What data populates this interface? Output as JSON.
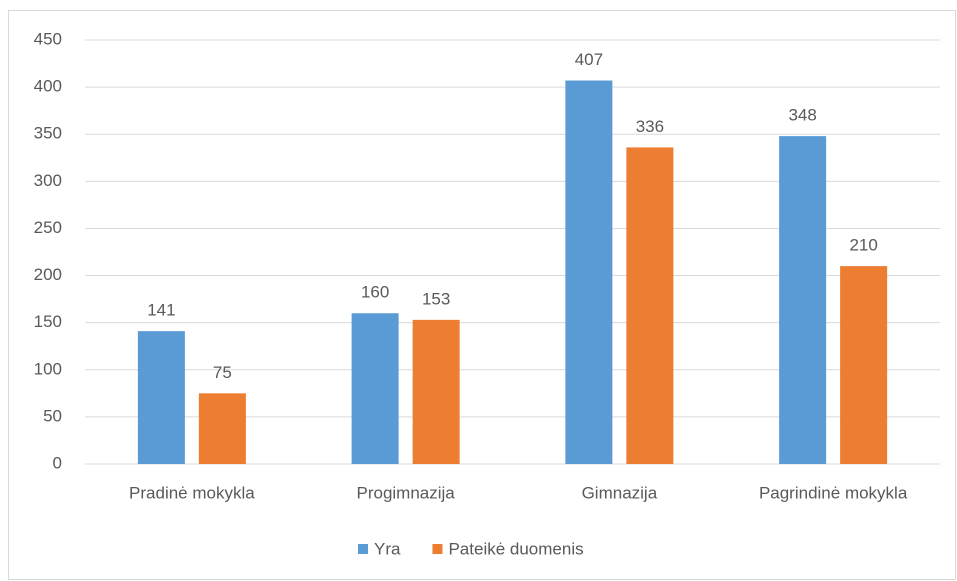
{
  "chart_data": {
    "type": "bar",
    "categories": [
      "Pradinė mokykla",
      "Progimnazija",
      "Gimnazija",
      "Pagrindinė mokykla"
    ],
    "series": [
      {
        "name": "Yra",
        "color": "#5b9bd5",
        "values": [
          141,
          160,
          407,
          348
        ]
      },
      {
        "name": "Pateikė duomenis",
        "color": "#ed7d31",
        "values": [
          75,
          153,
          336,
          210
        ]
      }
    ],
    "ylim": [
      0,
      450
    ],
    "yticks": [
      0,
      50,
      100,
      150,
      200,
      250,
      300,
      350,
      400,
      450
    ],
    "grid": true,
    "legend": "bottom"
  }
}
